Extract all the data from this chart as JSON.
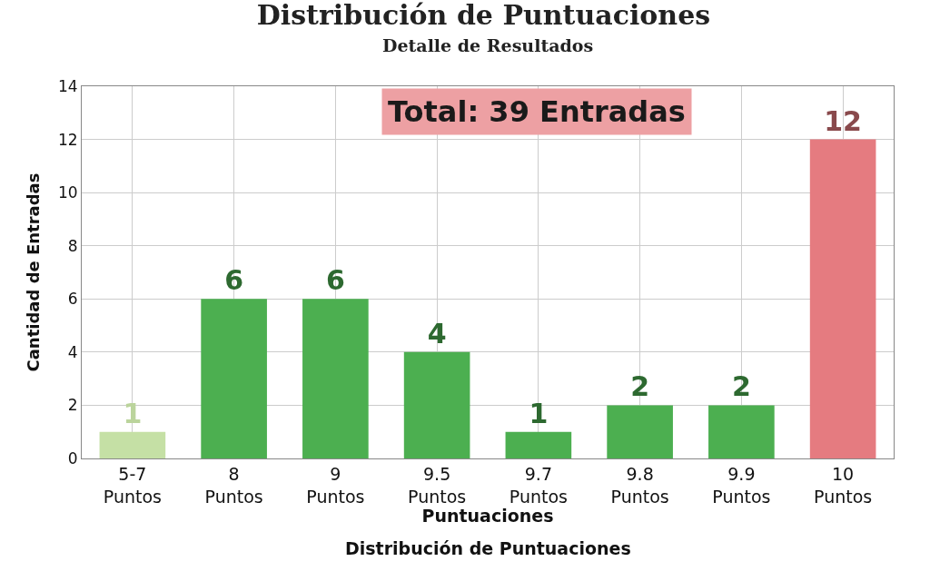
{
  "chart_data": {
    "type": "bar",
    "title": "Distribución de Puntuaciones",
    "subtitle": "Detalle de Resultados",
    "xlabel": "Puntuaciones",
    "ylabel": "Cantidad de Entradas",
    "categories": [
      "5-7 Puntos",
      "8 Puntos",
      "9 Puntos",
      "9.5 Puntos",
      "9.7 Puntos",
      "9.8 Puntos",
      "9.9 Puntos",
      "10 Puntos"
    ],
    "values": [
      1,
      6,
      6,
      4,
      1,
      2,
      2,
      12
    ],
    "colors": [
      "#c5e0a5",
      "#4caf50",
      "#4caf50",
      "#4caf50",
      "#4caf50",
      "#4caf50",
      "#4caf50",
      "#e57b80"
    ],
    "ylim": [
      0,
      14
    ],
    "yticks": [
      0,
      2,
      4,
      6,
      8,
      10,
      12,
      14
    ],
    "grid": true,
    "data_labels": true,
    "legend": false,
    "annotations": [
      "Total: 39 Entradas",
      "Distribución de Puntuaciones"
    ]
  }
}
